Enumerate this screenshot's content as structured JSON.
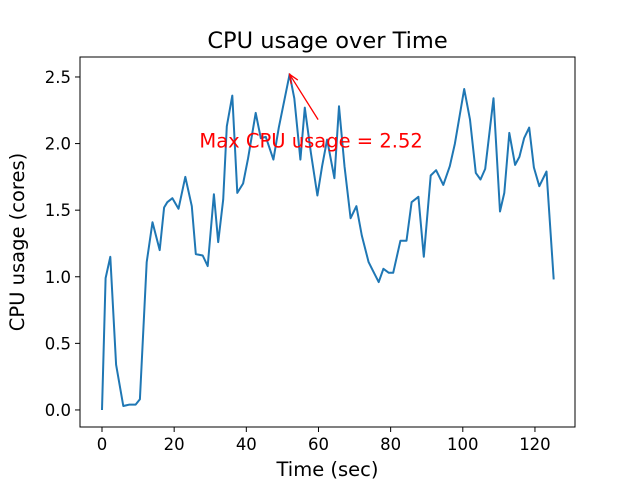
{
  "chart_data": {
    "type": "line",
    "title": "CPU usage over Time",
    "xlabel": "Time (sec)",
    "ylabel": "CPU usage (cores)",
    "xlim": [
      -6.1,
      131.1
    ],
    "ylim": [
      -0.128,
      2.65
    ],
    "xticks": [
      0,
      20,
      40,
      60,
      80,
      100,
      120
    ],
    "xtick_labels": [
      "0",
      "20",
      "40",
      "60",
      "80",
      "100",
      "120"
    ],
    "yticks": [
      0.0,
      0.5,
      1.0,
      1.5,
      2.0,
      2.5
    ],
    "ytick_labels": [
      "0.0",
      "0.5",
      "1.0",
      "1.5",
      "2.0",
      "2.5"
    ],
    "grid": false,
    "line_color": "#1f77b4",
    "series": [
      {
        "name": "CPU usage",
        "x": [
          0,
          1.0,
          2.3,
          3.9,
          5.9,
          7.6,
          9.3,
          10.5,
          12.4,
          14.0,
          16.0,
          17.2,
          18.1,
          19.5,
          21.2,
          23.1,
          24.9,
          26.0,
          27.9,
          29.3,
          31.0,
          32.2,
          33.6,
          34.6,
          36.1,
          37.5,
          39.1,
          40.5,
          42.6,
          44.0,
          45.4,
          47.5,
          49.0,
          52.0,
          53.3,
          55.0,
          56.2,
          57.9,
          59.7,
          61.0,
          62.4,
          64.4,
          65.7,
          67.2,
          68.9,
          70.5,
          72.0,
          73.9,
          75.2,
          76.7,
          78.0,
          79.5,
          80.7,
          82.7,
          84.4,
          85.8,
          87.7,
          89.2,
          91.1,
          92.6,
          94.6,
          96.4,
          97.8,
          100.4,
          102.0,
          103.6,
          104.9,
          106.2,
          108.5,
          110.3,
          111.5,
          112.9,
          114.5,
          115.7,
          117.0,
          118.4,
          119.7,
          121.2,
          123.2,
          125.2
        ],
        "y": [
          0.0,
          0.99,
          1.15,
          0.34,
          0.03,
          0.04,
          0.04,
          0.08,
          1.11,
          1.41,
          1.2,
          1.52,
          1.56,
          1.59,
          1.51,
          1.75,
          1.53,
          1.17,
          1.16,
          1.08,
          1.62,
          1.26,
          1.58,
          2.13,
          2.36,
          1.63,
          1.7,
          1.89,
          2.23,
          2.04,
          2.05,
          1.88,
          2.12,
          2.52,
          2.34,
          1.88,
          2.27,
          1.93,
          1.61,
          1.83,
          2.03,
          1.74,
          2.28,
          1.83,
          1.44,
          1.53,
          1.31,
          1.11,
          1.04,
          0.96,
          1.06,
          1.03,
          1.03,
          1.27,
          1.27,
          1.56,
          1.6,
          1.15,
          1.76,
          1.8,
          1.69,
          1.83,
          2.0,
          2.41,
          2.18,
          1.78,
          1.73,
          1.81,
          2.34,
          1.49,
          1.63,
          2.08,
          1.84,
          1.9,
          2.04,
          2.12,
          1.82,
          1.68,
          1.79,
          0.98
        ]
      }
    ],
    "annotation": {
      "text": "Max CPU usage = 2.52",
      "xy": [
        52.0,
        2.52
      ],
      "xytext": [
        59.9,
        2.18
      ],
      "text_anchor_data": [
        27.0,
        2.03
      ],
      "color": "#ff0000"
    }
  }
}
